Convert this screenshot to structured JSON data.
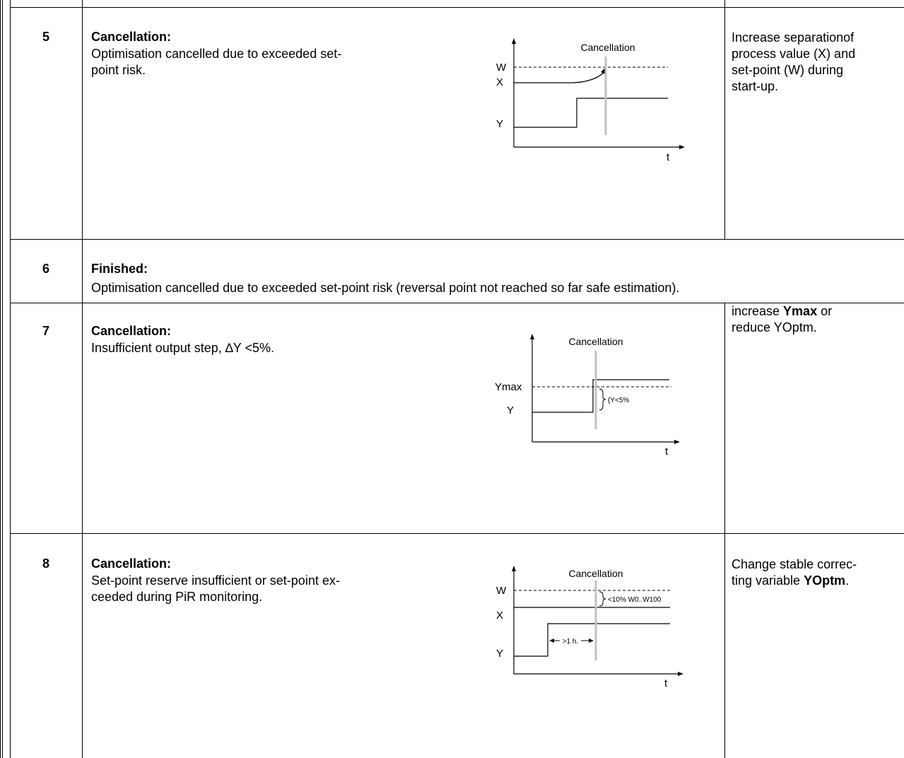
{
  "rows": [
    {
      "number": "5",
      "title": "Cancellation:",
      "description": "Optimisation cancelled due to exceeded set-point risk.",
      "desc_line1": "Optimisation cancelled due to exceeded set-",
      "desc_line2": "point risk.",
      "remedy_line1": "Increase separationof",
      "remedy_line2": "process value (X) and",
      "remedy_line3": "set-point (W) during",
      "remedy_line4": "start-up.",
      "diagram": {
        "label_top": "Cancellation",
        "W": "W",
        "X": "X",
        "Y": "Y",
        "t": "t"
      }
    },
    {
      "number": "6",
      "title": "Finished:",
      "description": "Optimisation cancelled due to exceeded set-point risk (reversal point not reached so far safe estimation)."
    },
    {
      "number": "7",
      "title": "Cancellation:",
      "description": "Insufficient output step, ∆Y <5%.",
      "remedy_line1": "increase ",
      "remedy_bold1": "Ymax",
      "remedy_line1b": " or",
      "remedy_line2": "reduce YOptm.",
      "diagram": {
        "label_top": "Cancellation",
        "Ymax": "Ymax",
        "Y": "Y",
        "t": "t",
        "delta": "{Y<5%"
      }
    },
    {
      "number": "8",
      "title": "Cancellation:",
      "desc_line1": "Set-point reserve insufficient or set-point ex-",
      "desc_line2": "ceeded during PiR monitoring.",
      "remedy_line1": "Change stable correc-",
      "remedy_line2": "ting variable ",
      "remedy_bold2": "YOptm",
      "remedy_line2b": ".",
      "diagram": {
        "label_top": "Cancellation",
        "W": "W",
        "X": "X",
        "Y": "Y",
        "t": "t",
        "reserve": "<10% W0..W100",
        "duration": ">1 h."
      }
    }
  ]
}
